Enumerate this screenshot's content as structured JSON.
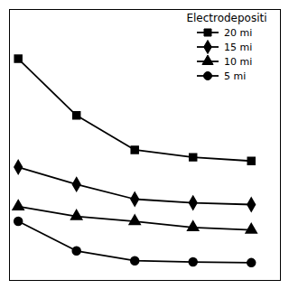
{
  "chart_data": {
    "type": "line",
    "x": [
      0,
      1,
      2,
      3,
      4
    ],
    "series": [
      {
        "name": "20 mi",
        "marker": "square",
        "values": [
          10.5,
          8.2,
          6.8,
          6.5,
          6.35
        ]
      },
      {
        "name": "15 mi",
        "marker": "diamond",
        "values": [
          6.1,
          5.4,
          4.8,
          4.65,
          4.58
        ]
      },
      {
        "name": "10 mi",
        "marker": "triangle",
        "values": [
          4.5,
          4.1,
          3.9,
          3.65,
          3.55
        ]
      },
      {
        "name": "5 mi",
        "marker": "circle",
        "values": [
          3.9,
          2.7,
          2.3,
          2.25,
          2.22
        ]
      }
    ],
    "legend_title": "Electrodepositi",
    "legend": "upper right",
    "color": "black",
    "xlim": [
      -0.15,
      4.5
    ],
    "ylim": [
      1.5,
      12.5
    ],
    "xticks": [],
    "yticks": [],
    "tick_labels": false,
    "grid": false
  }
}
